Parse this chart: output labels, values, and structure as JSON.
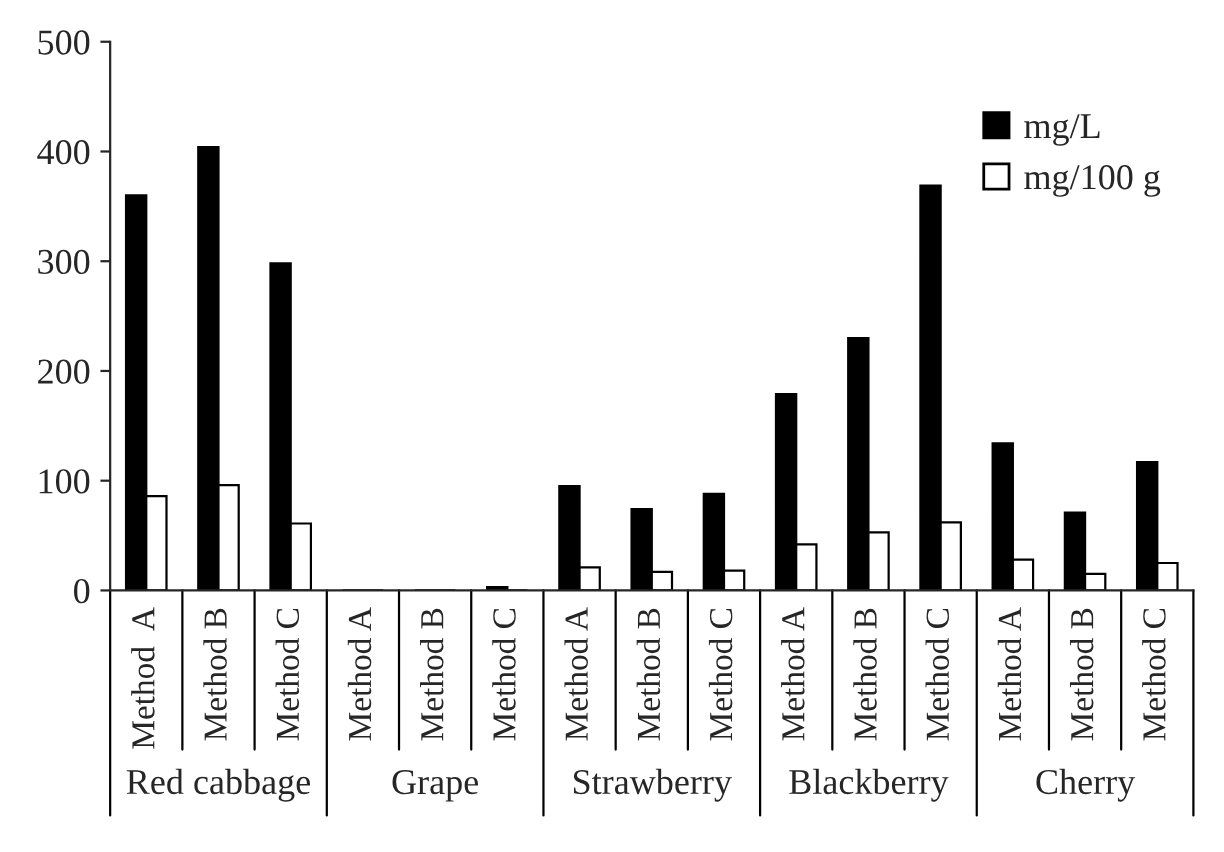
{
  "chart_data": {
    "type": "bar",
    "categories": [
      "Method  A",
      "Method B",
      "Method C",
      "Method A",
      "Method B",
      "Method C",
      "Method A",
      "Method B",
      "Method C",
      "Method A",
      "Method B",
      "Method C",
      "Method A",
      "Method B",
      "Method C"
    ],
    "series": [
      {
        "name": "mg/L",
        "color": "#000000",
        "values": [
          360,
          404,
          298,
          null,
          null,
          3,
          95,
          74,
          88,
          179,
          230,
          369,
          134,
          71,
          117
        ]
      },
      {
        "name": "mg/100 g",
        "color": "#ffffff",
        "values": [
          86,
          96,
          61,
          null,
          null,
          null,
          21,
          17,
          18,
          42,
          53,
          62,
          28,
          15,
          25
        ]
      }
    ],
    "annotations": [
      "Red cabbage",
      "Grape",
      "Strawberry",
      "Blackberry",
      "Cherry"
    ],
    "ylim": [
      0,
      500
    ],
    "yticks": [
      0,
      100,
      200,
      300,
      400,
      500
    ],
    "grid": false,
    "legend": "top right"
  }
}
